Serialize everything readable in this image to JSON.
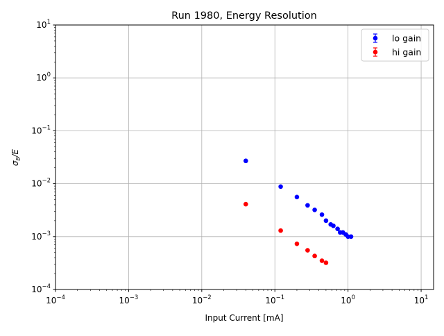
{
  "chart_data": {
    "type": "scatter",
    "title": "Run 1980, Energy Resolution",
    "xlabel": "Input Current [mA]",
    "ylabel": "σE/E",
    "xscale": "log",
    "yscale": "log",
    "xlim": [
      0.0001,
      14.8
    ],
    "ylim": [
      0.0001,
      10
    ],
    "grid": true,
    "legend_position": "top-right",
    "x_ticks": [
      {
        "v": 0.0001,
        "base": "10",
        "exp": "−4"
      },
      {
        "v": 0.001,
        "base": "10",
        "exp": "−3"
      },
      {
        "v": 0.01,
        "base": "10",
        "exp": "−2"
      },
      {
        "v": 0.1,
        "base": "10",
        "exp": "−1"
      },
      {
        "v": 1,
        "base": "10",
        "exp": "0"
      },
      {
        "v": 10,
        "base": "10",
        "exp": "1"
      }
    ],
    "y_ticks": [
      {
        "v": 0.0001,
        "base": "10",
        "exp": "−4"
      },
      {
        "v": 0.001,
        "base": "10",
        "exp": "−3"
      },
      {
        "v": 0.01,
        "base": "10",
        "exp": "−2"
      },
      {
        "v": 0.1,
        "base": "10",
        "exp": "−1"
      },
      {
        "v": 1,
        "base": "10",
        "exp": "0"
      },
      {
        "v": 10,
        "base": "10",
        "exp": "1"
      }
    ],
    "series": [
      {
        "name": "lo gain",
        "color": "#0000ff",
        "x": [
          0.04,
          0.12,
          0.2,
          0.28,
          0.35,
          0.44,
          0.5,
          0.58,
          0.63,
          0.72,
          0.78,
          0.85,
          0.93,
          1.0,
          1.1
        ],
        "y": [
          0.027,
          0.0088,
          0.0056,
          0.0039,
          0.0032,
          0.0026,
          0.002,
          0.0017,
          0.0016,
          0.0014,
          0.0012,
          0.0012,
          0.0011,
          0.001,
          0.001
        ]
      },
      {
        "name": "hi gain",
        "color": "#ff0000",
        "x": [
          0.04,
          0.12,
          0.2,
          0.28,
          0.35,
          0.44,
          0.5
        ],
        "y": [
          0.0041,
          0.0013,
          0.00073,
          0.00055,
          0.00043,
          0.00035,
          0.00032
        ]
      }
    ]
  }
}
